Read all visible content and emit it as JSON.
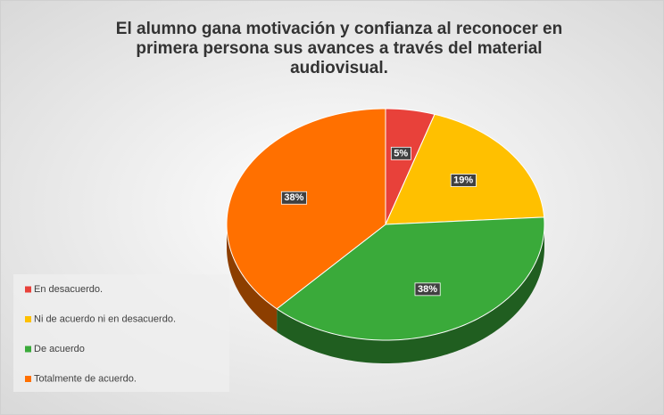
{
  "chart_data": {
    "type": "pie",
    "title": "El alumno gana motivación y confianza al reconocer en primera persona sus avances a través del material audiovisual.",
    "categories": [
      "En desacuerdo.",
      "Ni de acuerdo ni en desacuerdo.",
      "De acuerdo",
      "Totalmente de acuerdo."
    ],
    "values": [
      5,
      19,
      38,
      38
    ],
    "value_labels": [
      "5%",
      "19%",
      "38%",
      "38%"
    ],
    "colors": [
      "#e8413a",
      "#ffc000",
      "#3aaa3a",
      "#ff7000"
    ],
    "legend": "bottom-left"
  }
}
